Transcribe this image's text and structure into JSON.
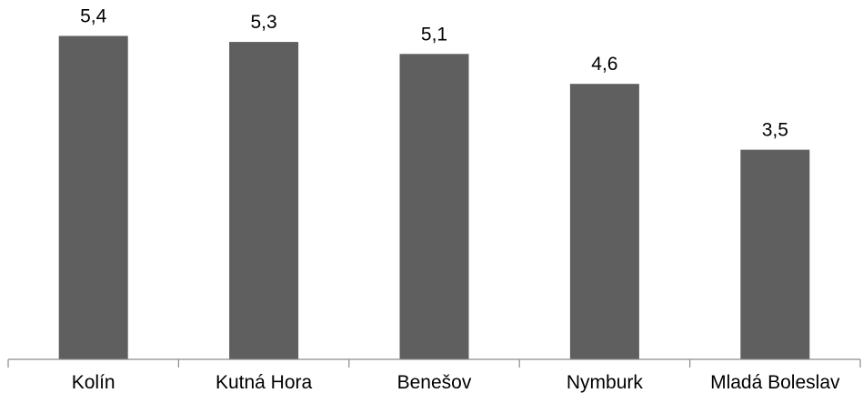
{
  "chart_data": {
    "type": "bar",
    "categories": [
      "Kolín",
      "Kutná Hora",
      "Benešov",
      "Nymburk",
      "Mladá Boleslav"
    ],
    "values": [
      5.4,
      5.3,
      5.1,
      4.6,
      3.5
    ],
    "value_labels": [
      "5,4",
      "5,3",
      "5,1",
      "4,6",
      "3,5"
    ],
    "title": "",
    "xlabel": "",
    "ylabel": "",
    "ylim": [
      0,
      6.0
    ],
    "grid": false,
    "legend": "none",
    "colors": {
      "bar": "#5f5f5f",
      "axis": "#8c8c8c",
      "text": "#000000"
    }
  }
}
